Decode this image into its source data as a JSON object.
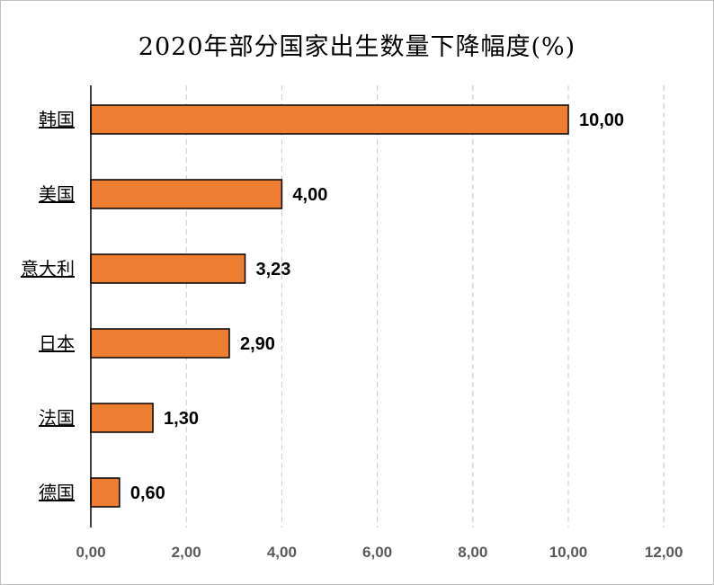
{
  "chart_data": {
    "type": "bar",
    "orientation": "horizontal",
    "title": "2020年部分国家出生数量下降幅度(%)",
    "categories": [
      "韩国",
      "美国",
      "意大利",
      "日本",
      "法国",
      "德国"
    ],
    "values": [
      10.0,
      4.0,
      3.23,
      2.9,
      1.3,
      0.6
    ],
    "data_labels": [
      "10,00",
      "4,00",
      "3,23",
      "2,90",
      "1,30",
      "0,60"
    ],
    "xlim": [
      0,
      12
    ],
    "x_ticks": [
      0,
      2,
      4,
      6,
      8,
      10,
      12
    ],
    "x_tick_labels": [
      "0,00",
      "2,00",
      "4,00",
      "6,00",
      "8,00",
      "10,00",
      "12,00"
    ],
    "xlabel": "",
    "ylabel": "",
    "grid": "vertical dashed",
    "legend": "none",
    "bar_color": "#ed7d31",
    "bar_edge_color": "#000000"
  }
}
